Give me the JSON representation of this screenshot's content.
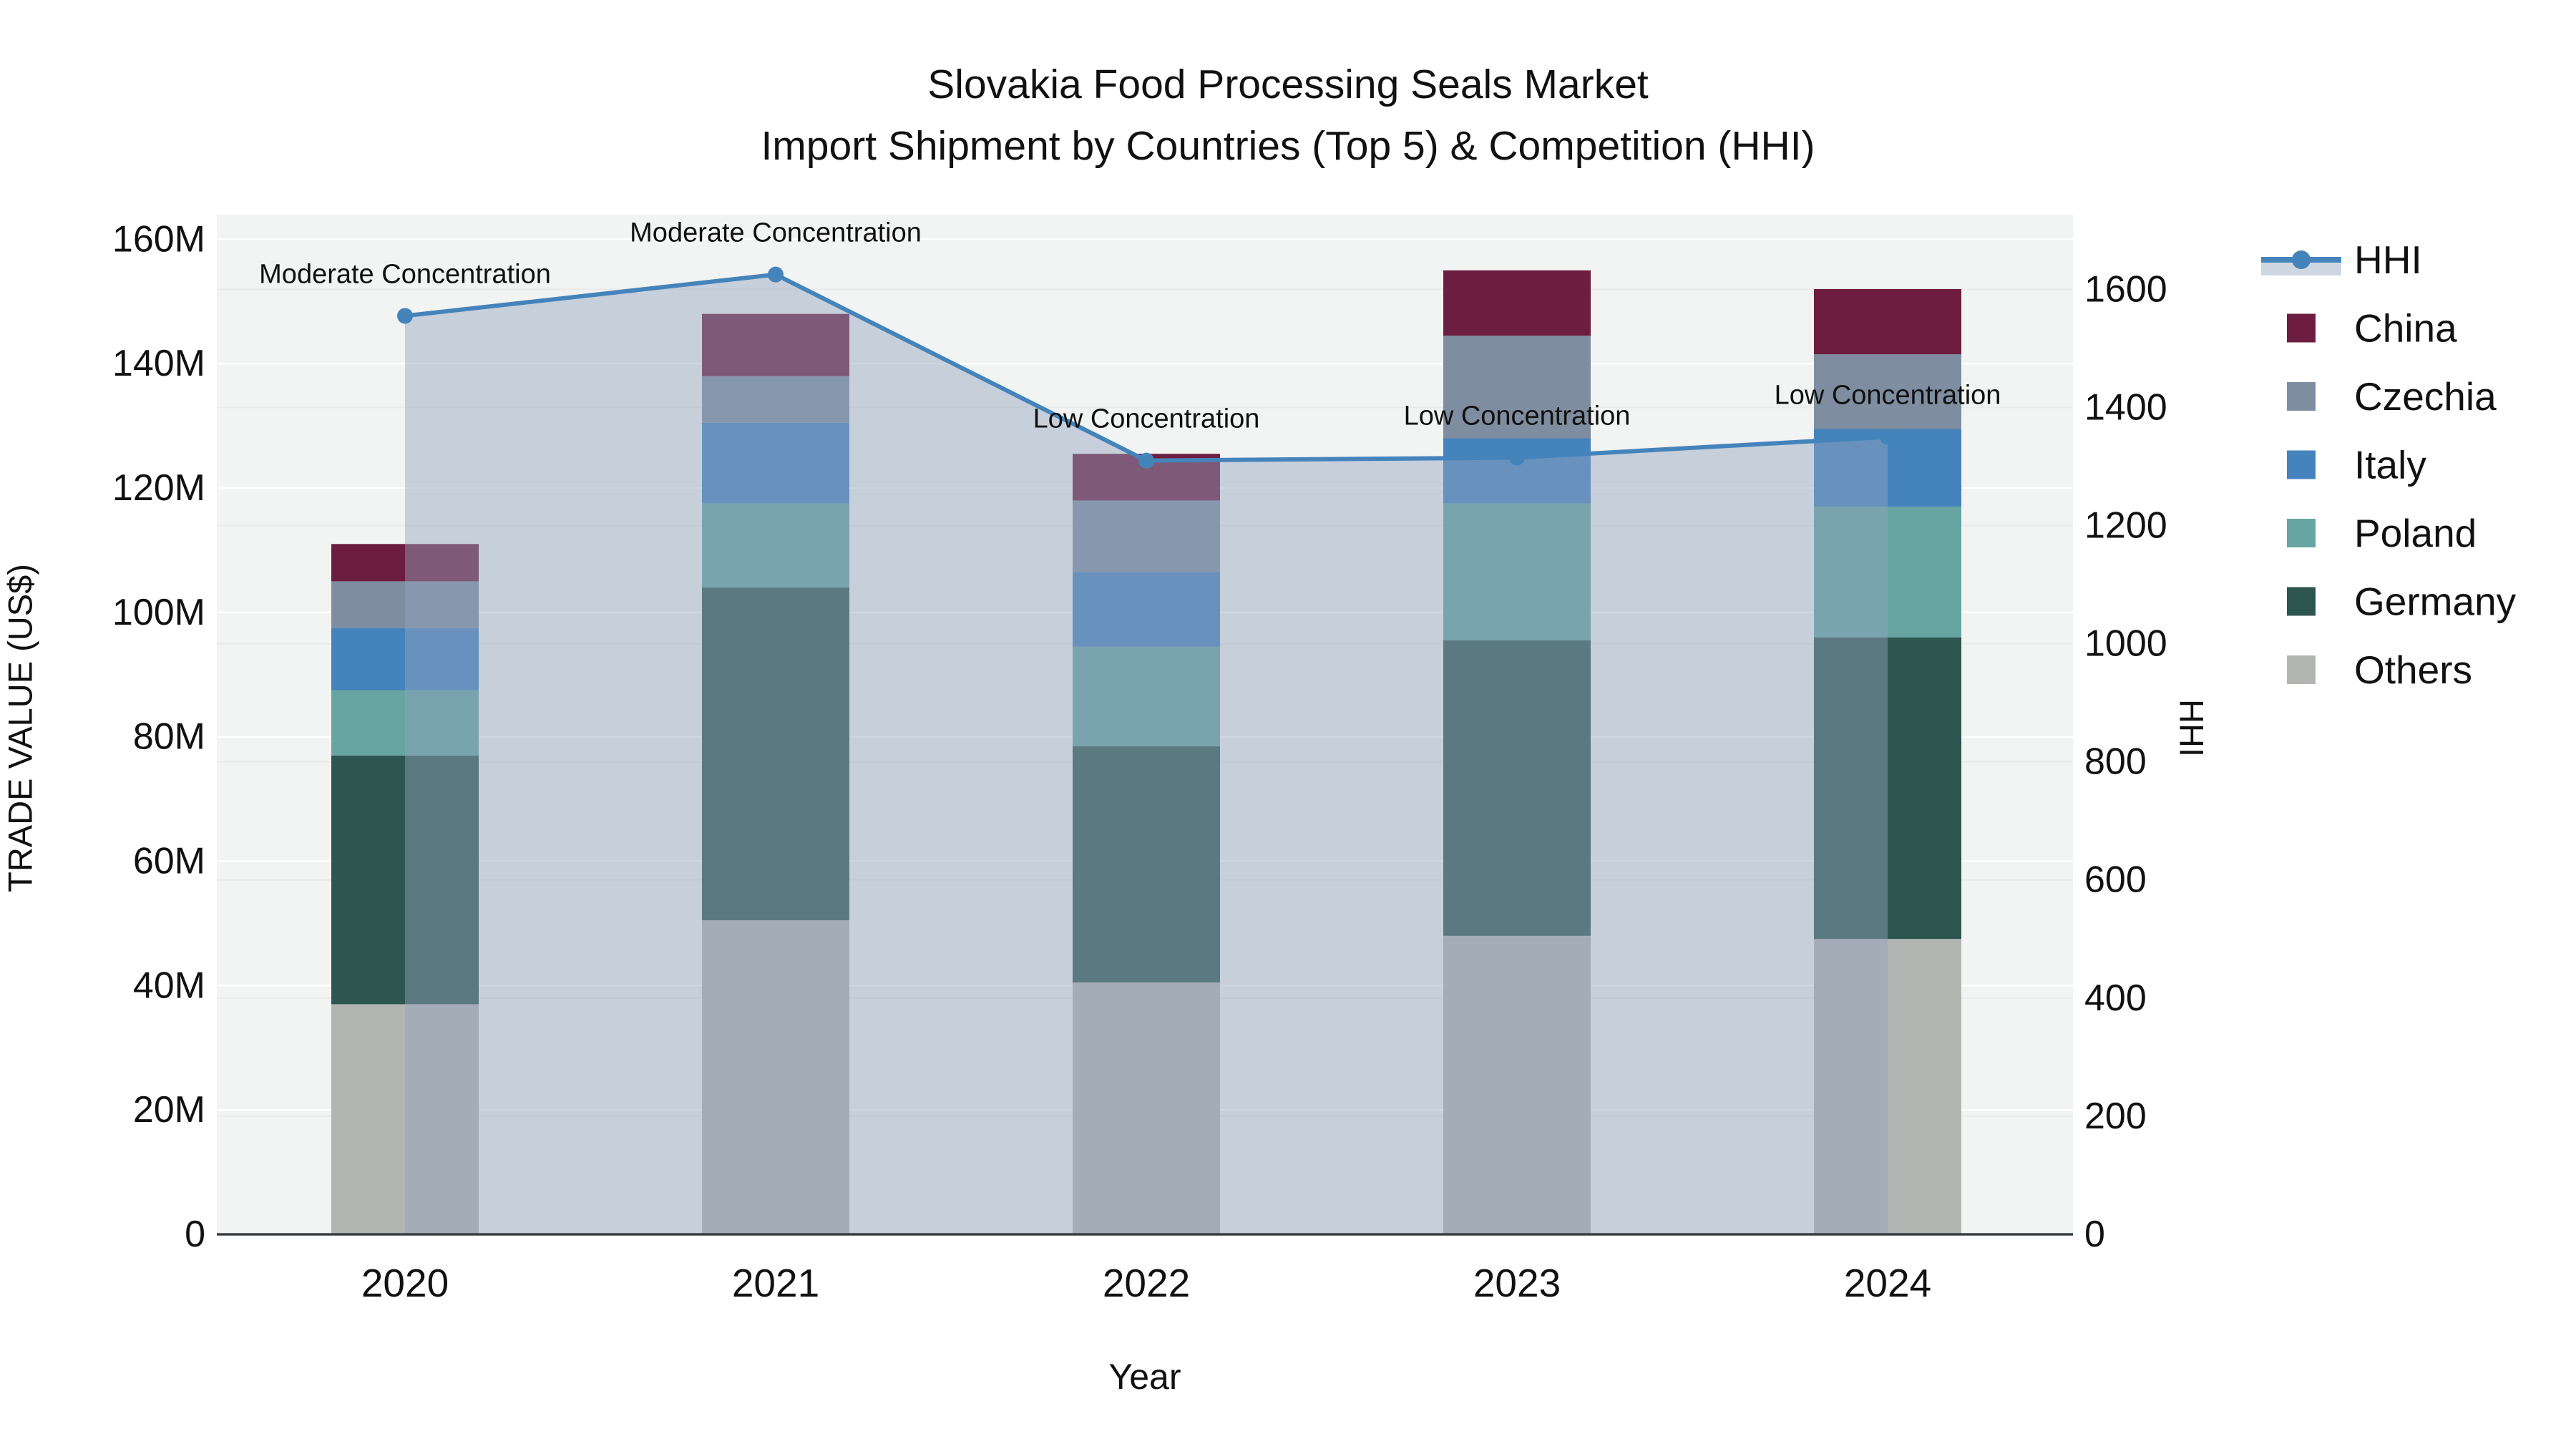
{
  "title": {
    "line1": "Slovakia Food Processing Seals Market",
    "line2": "Import Shipment by Countries (Top 5) & Competition (HHI)"
  },
  "chart_data": {
    "type": "bar+line",
    "title": "Slovakia Food Processing Seals Market — Import Shipment by Countries (Top 5) & Competition (HHI)",
    "xlabel": "Year",
    "ylabel": "TRADE VALUE (US$)",
    "y2label": "HHI",
    "categories": [
      "2020",
      "2021",
      "2022",
      "2023",
      "2024"
    ],
    "series": [
      {
        "name": "Others",
        "color": "#B3B5B3",
        "values_musd": [
          37.0,
          50.5,
          40.5,
          48.0,
          47.5
        ]
      },
      {
        "name": "Germany",
        "color": "#2E5651",
        "values_musd": [
          40.0,
          53.5,
          38.0,
          47.5,
          48.5
        ]
      },
      {
        "name": "Poland",
        "color": "#66A5A1",
        "values_musd": [
          10.5,
          13.5,
          16.0,
          22.0,
          21.0
        ]
      },
      {
        "name": "Italy",
        "color": "#4583BD",
        "values_musd": [
          10.0,
          13.0,
          12.0,
          10.5,
          12.5
        ]
      },
      {
        "name": "Czechia",
        "color": "#7E8DA0",
        "values_musd": [
          7.5,
          7.5,
          11.5,
          16.5,
          12.0
        ]
      },
      {
        "name": "China",
        "color": "#6D1D40",
        "values_musd": [
          6.0,
          10.0,
          7.5,
          10.5,
          10.5
        ]
      }
    ],
    "bar_totals_musd": [
      111.0,
      148.0,
      125.5,
      155.0,
      152.0
    ],
    "hhi": {
      "name": "HHI",
      "line_color": "#4584BB",
      "area_fill": "rgba(146,163,189,0.45)",
      "values": [
        1555,
        1625,
        1310,
        1315,
        1350
      ]
    },
    "annotations": [
      {
        "category": "2020",
        "text": "Moderate Concentration"
      },
      {
        "category": "2021",
        "text": "Moderate Concentration"
      },
      {
        "category": "2022",
        "text": "Low Concentration"
      },
      {
        "category": "2023",
        "text": "Low Concentration"
      },
      {
        "category": "2024",
        "text": "Low Concentration"
      }
    ],
    "y_axis": {
      "ticks": [
        "0",
        "20M",
        "40M",
        "60M",
        "80M",
        "100M",
        "120M",
        "140M",
        "160M"
      ],
      "tick_values": [
        0,
        20,
        40,
        60,
        80,
        100,
        120,
        140,
        160
      ],
      "range_musd": [
        0,
        164
      ]
    },
    "y2_axis": {
      "ticks": [
        "0",
        "200",
        "400",
        "600",
        "800",
        "1000",
        "1200",
        "1400",
        "1600"
      ],
      "tick_values": [
        0,
        200,
        400,
        600,
        800,
        1000,
        1200,
        1400,
        1600
      ],
      "range": [
        0,
        1726
      ]
    },
    "grid": "on",
    "legend_position": "right",
    "plot_bg": "#F2F3F3",
    "grid_color": "#FFFFFF",
    "grid_color2": "#E9EAEC",
    "axisline_color": "#3A3F44"
  },
  "legend": {
    "items": [
      {
        "label": "HHI",
        "type": "line",
        "color": "#4584BB"
      },
      {
        "label": "China",
        "type": "swatch",
        "color": "#6D1D40"
      },
      {
        "label": "Czechia",
        "type": "swatch",
        "color": "#7E8DA0"
      },
      {
        "label": "Italy",
        "type": "swatch",
        "color": "#4583BD"
      },
      {
        "label": "Poland",
        "type": "swatch",
        "color": "#66A5A1"
      },
      {
        "label": "Germany",
        "type": "swatch",
        "color": "#2E5651"
      },
      {
        "label": "Others",
        "type": "swatch",
        "color": "#B3B5B3"
      }
    ]
  }
}
